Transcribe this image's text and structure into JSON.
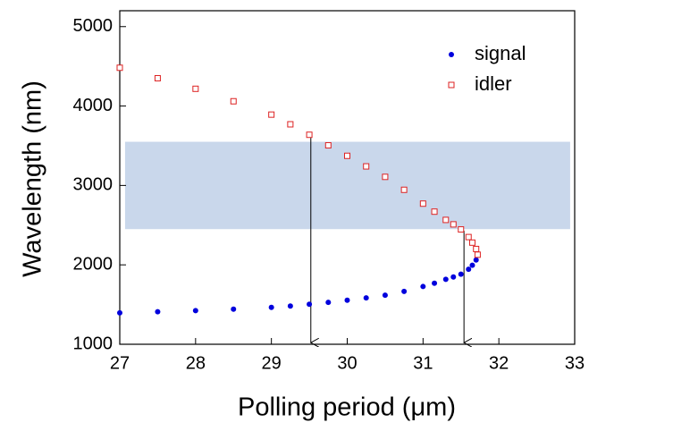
{
  "chart_data": {
    "type": "scatter",
    "xlabel": "Polling period (μm)",
    "ylabel": "Wavelength (nm)",
    "x": [
      27,
      27.5,
      28,
      28.5,
      29,
      29.25,
      29.5,
      29.75,
      30,
      30.25,
      30.5,
      30.75,
      31,
      31.15,
      31.3,
      31.4,
      31.5,
      31.6,
      31.65,
      31.7,
      31.72
    ],
    "series": [
      {
        "name": "signal",
        "color": "#0000dd",
        "marker": "circle",
        "values": [
          1395,
          1409,
          1423,
          1442,
          1464,
          1482,
          1504,
          1528,
          1554,
          1584,
          1618,
          1666,
          1727,
          1769,
          1818,
          1847,
          1883,
          1944,
          1995,
          2061,
          2128
        ]
      },
      {
        "name": "idler",
        "color": "#dd2222",
        "marker": "square",
        "values": [
          4482,
          4350,
          4217,
          4060,
          3892,
          3770,
          3638,
          3505,
          3373,
          3240,
          3108,
          2945,
          2771,
          2670,
          2566,
          2510,
          2446,
          2350,
          2280,
          2200,
          2128
        ]
      }
    ],
    "band": {
      "xlim": [
        27.07,
        32.94
      ],
      "ylim": [
        2450,
        3550
      ],
      "color": "#c9d7eb"
    },
    "arrows": [
      {
        "x": 29.52,
        "from": 3600,
        "to": 1020
      },
      {
        "x": 31.54,
        "from": 2430,
        "to": 1020
      }
    ],
    "xlim": [
      27,
      33
    ],
    "xticks": [
      27,
      28,
      29,
      30,
      31,
      32,
      33
    ],
    "ylim": [
      1000,
      5200
    ],
    "yticks": [
      1000,
      2000,
      3000,
      4000,
      5000
    ],
    "legend": "upper right"
  }
}
